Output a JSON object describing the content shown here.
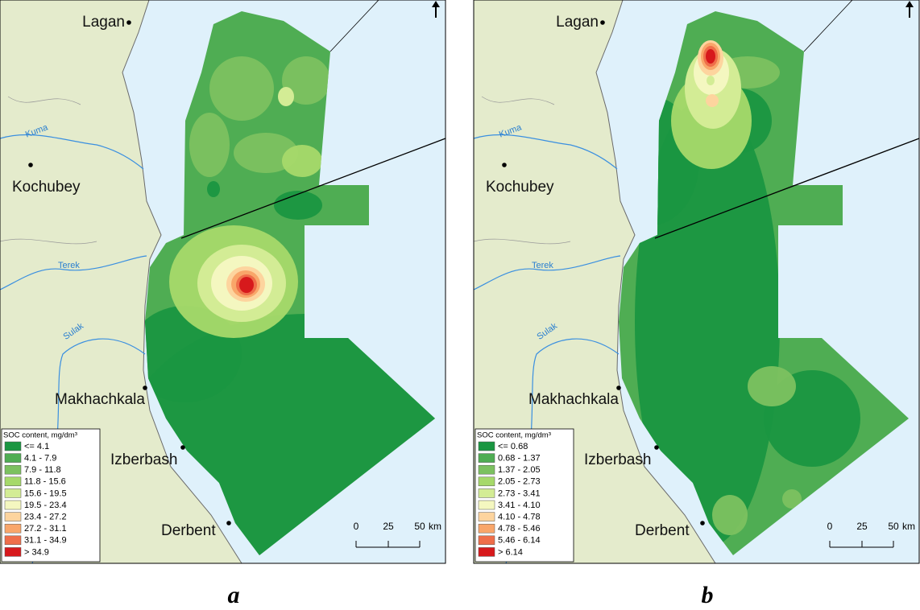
{
  "panels": [
    {
      "label": "a",
      "cities": [
        "Lagan",
        "Kochubey",
        "Makhachkala",
        "Izberbash",
        "Derbent"
      ],
      "rivers": [
        "Kuma",
        "Terek",
        "Sulak"
      ],
      "legend": {
        "title": "SOC content, mg/dm³",
        "classes": [
          "<= 4.1",
          "4.1 - 7.9",
          "7.9 - 11.8",
          "11.8 - 15.6",
          "15.6 - 19.5",
          "19.5 - 23.4",
          "23.4 - 27.2",
          "27.2 - 31.1",
          "31.1 - 34.9",
          "> 34.9"
        ],
        "colors": [
          "#1a9641",
          "#4fad53",
          "#7cc160",
          "#a6d96a",
          "#d3ec95",
          "#f4f7c0",
          "#fdd49e",
          "#f9a66a",
          "#ef6e4a",
          "#d7191c"
        ]
      },
      "scale": {
        "ticks": [
          0,
          25,
          50
        ],
        "unit": "km"
      }
    },
    {
      "label": "b",
      "cities": [
        "Lagan",
        "Kochubey",
        "Makhachkala",
        "Izberbash",
        "Derbent"
      ],
      "rivers": [
        "Kuma",
        "Terek",
        "Sulak"
      ],
      "legend": {
        "title": "SOC content, mg/dm³",
        "classes": [
          "<= 0.68",
          "0.68 - 1.37",
          "1.37 - 2.05",
          "2.05 - 2.73",
          "2.73 - 3.41",
          "3.41 - 4.10",
          "4.10 - 4.78",
          "4.78 - 5.46",
          "5.46 - 6.14",
          "> 6.14"
        ],
        "colors": [
          "#1a9641",
          "#4fad53",
          "#7cc160",
          "#a6d96a",
          "#d3ec95",
          "#f4f7c0",
          "#fdd49e",
          "#f9a66a",
          "#ef6e4a",
          "#d7191c"
        ]
      },
      "scale": {
        "ticks": [
          0,
          25,
          50
        ],
        "unit": "km"
      }
    }
  ]
}
